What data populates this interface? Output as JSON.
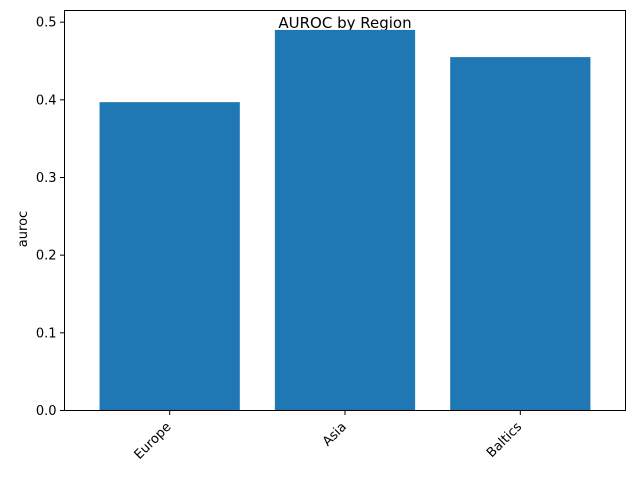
{
  "chart_data": {
    "type": "bar",
    "title": "AUROC by Region",
    "xlabel": "",
    "ylabel": "auroc",
    "categories": [
      "Europe",
      "Asia",
      "Baltics"
    ],
    "values": [
      0.397,
      0.49,
      0.455
    ],
    "ylim": [
      0,
      0.515
    ],
    "yticks": [
      0.0,
      0.1,
      0.2,
      0.3,
      0.4,
      0.5
    ],
    "ytick_labels": [
      "0.0",
      "0.1",
      "0.2",
      "0.3",
      "0.4",
      "0.5"
    ],
    "bar_color": "#1f77b4",
    "grid": false,
    "xtick_rotation": "45 degrees"
  }
}
